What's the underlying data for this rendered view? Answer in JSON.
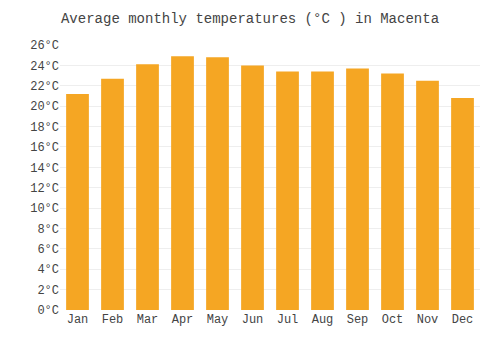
{
  "chart_data": {
    "type": "bar",
    "title": "Average monthly temperatures (°C ) in Macenta",
    "categories": [
      "Jan",
      "Feb",
      "Mar",
      "Apr",
      "May",
      "Jun",
      "Jul",
      "Aug",
      "Sep",
      "Oct",
      "Nov",
      "Dec"
    ],
    "values": [
      21.2,
      22.7,
      24.1,
      24.9,
      24.8,
      24.0,
      23.4,
      23.4,
      23.7,
      23.2,
      22.5,
      20.8
    ],
    "color": "#F5A623",
    "ylim": [
      0,
      26
    ],
    "yticks": [
      {
        "value": 0,
        "label": "0°C"
      },
      {
        "value": 2,
        "label": "2°C"
      },
      {
        "value": 4,
        "label": "4°C"
      },
      {
        "value": 6,
        "label": "6°C"
      },
      {
        "value": 8,
        "label": "8°C"
      },
      {
        "value": 10,
        "label": "10°C"
      },
      {
        "value": 12,
        "label": "12°C"
      },
      {
        "value": 14,
        "label": "14°C"
      },
      {
        "value": 16,
        "label": "16°C"
      },
      {
        "value": 18,
        "label": "18°C"
      },
      {
        "value": 20,
        "label": "20°C"
      },
      {
        "value": 22,
        "label": "22°C"
      },
      {
        "value": 24,
        "label": "24°C"
      },
      {
        "value": 26,
        "label": "26°C"
      }
    ],
    "grid": true
  }
}
